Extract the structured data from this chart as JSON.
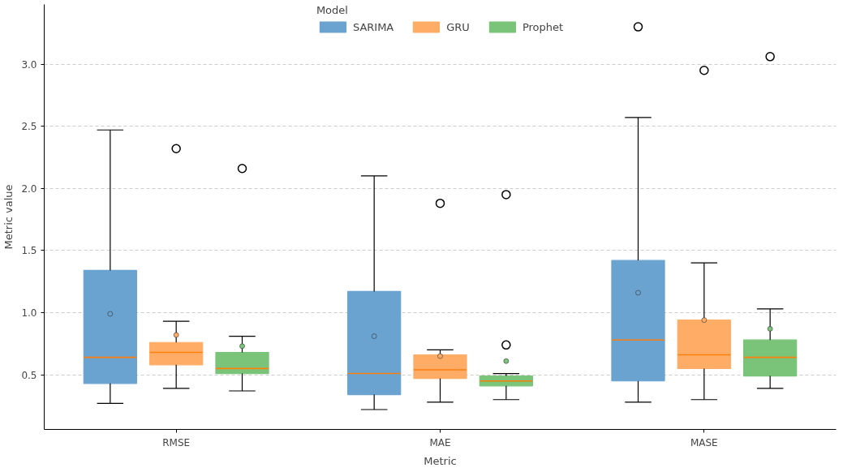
{
  "chart_data": {
    "type": "box",
    "xlabel": "Metric",
    "ylabel": "Metric value",
    "legend_title": "Model",
    "legend": "top",
    "grid": "y",
    "categories": [
      "RMSE",
      "MAE",
      "MASE"
    ],
    "ylim": [
      0.06,
      3.48
    ],
    "yticks": [
      0.5,
      {
        "value": 1,
        "label": "1.0"
      },
      1.5,
      {
        "value": 2,
        "label": "2.0"
      },
      2.5,
      {
        "value": 3,
        "label": "3.0"
      }
    ],
    "series": [
      {
        "name": "SARIMA",
        "color": "#6aa3cf",
        "boxes": [
          {
            "low": 0.27,
            "q1": 0.43,
            "median": 0.64,
            "q3": 1.34,
            "high": 2.47,
            "mean": 0.99
          },
          {
            "low": 0.22,
            "q1": 0.34,
            "median": 0.51,
            "q3": 1.17,
            "high": 2.1,
            "mean": 0.81
          },
          {
            "low": 0.28,
            "q1": 0.45,
            "median": 0.78,
            "q3": 1.42,
            "high": 2.57,
            "mean": 1.16,
            "outliers": [
              3.3
            ]
          }
        ]
      },
      {
        "name": "GRU",
        "color": "#ffac66",
        "boxes": [
          {
            "low": 0.39,
            "q1": 0.58,
            "median": 0.68,
            "q3": 0.76,
            "high": 0.93,
            "mean": 0.82,
            "outliers": [
              2.32
            ]
          },
          {
            "low": 0.28,
            "q1": 0.47,
            "median": 0.54,
            "q3": 0.66,
            "high": 0.7,
            "mean": 0.65,
            "outliers": [
              1.88
            ]
          },
          {
            "low": 0.3,
            "q1": 0.55,
            "median": 0.66,
            "q3": 0.94,
            "high": 1.4,
            "mean": 0.94,
            "outliers": [
              2.95
            ]
          }
        ]
      },
      {
        "name": "Prophet",
        "color": "#79c479",
        "boxes": [
          {
            "low": 0.37,
            "q1": 0.51,
            "median": 0.55,
            "q3": 0.68,
            "high": 0.81,
            "mean": 0.73,
            "outliers": [
              2.16
            ]
          },
          {
            "low": 0.3,
            "q1": 0.41,
            "median": 0.45,
            "q3": 0.49,
            "high": 0.51,
            "mean": 0.61,
            "outliers": [
              0.74,
              1.95
            ]
          },
          {
            "low": 0.39,
            "q1": 0.49,
            "median": 0.64,
            "q3": 0.78,
            "high": 1.03,
            "mean": 0.87,
            "outliers": [
              3.06
            ]
          }
        ]
      }
    ]
  }
}
